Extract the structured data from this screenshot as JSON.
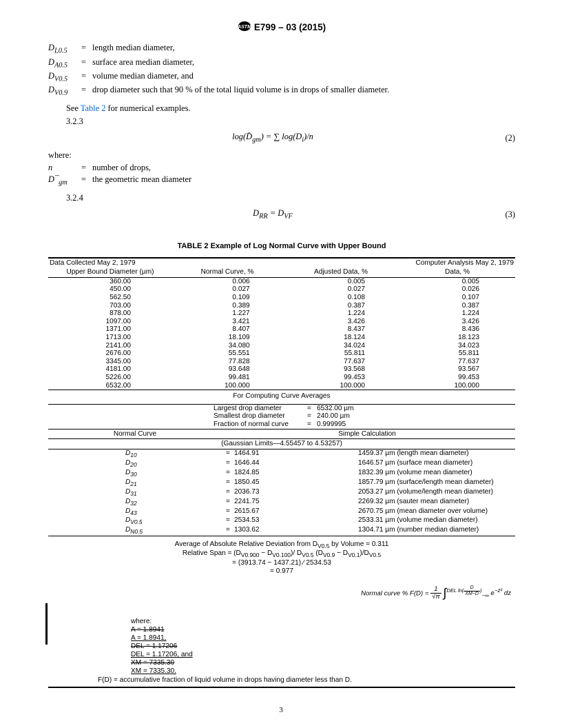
{
  "header": {
    "designation": "E799 – 03 (2015)"
  },
  "definitions": [
    {
      "sym": "D<sub>L0.5</sub>",
      "def": "length median diameter,"
    },
    {
      "sym": "D<sub>A0.5</sub>",
      "def": "surface area median diameter,"
    },
    {
      "sym": "D<sub>V0.5</sub>",
      "def": "volume median diameter, and"
    },
    {
      "sym": "D<sub>V0.9</sub>",
      "def": "drop diameter such that 90 % of the total liquid volume is in drops of smaller diameter."
    }
  ],
  "see_table": {
    "pre": "See ",
    "link": "Table 2",
    "post": " for numerical examples."
  },
  "sec_323": "3.2.3",
  "eq2": {
    "body": "log(D̄<sub>gm</sub>) = ∑ log(D<sub>i</sub>)/n",
    "num": "(2)"
  },
  "where_label": "where:",
  "where_rows": [
    {
      "sym": "n",
      "def": "number of drops,"
    },
    {
      "sym": "D¯<sub>gm</sub>",
      "def": "the geometric mean diameter"
    }
  ],
  "sec_324": "3.2.4",
  "eq3": {
    "body": "D<sub>RR</sub> = D<sub>VF</sub>",
    "num": "(3)"
  },
  "table": {
    "title": "TABLE 2 Example of Log Normal Curve with Upper Bound",
    "top_left": "Data Collected May 2, 1979",
    "top_right": "Computer Analysis May 2, 1979",
    "head": [
      "Upper Bound Diameter (µm)",
      "Normal Curve, %",
      "Adjusted Data, %",
      "Data, %"
    ],
    "rows": [
      [
        "360.00",
        "0.006",
        "0.005",
        "0.005"
      ],
      [
        "450.00",
        "0.027",
        "0.027",
        "0.026"
      ],
      [
        "562.50",
        "0.109",
        "0.108",
        "0.107"
      ],
      [
        "703.00",
        "0.389",
        "0.387",
        "0.387"
      ],
      [
        "878.00",
        "1.227",
        "1.224",
        "1.224"
      ],
      [
        "1097.00",
        "3.421",
        "3.426",
        "3.426"
      ],
      [
        "1371.00",
        "8.407",
        "8.437",
        "8.436"
      ],
      [
        "1713.00",
        "18.109",
        "18.124",
        "18.123"
      ],
      [
        "2141.00",
        "34.080",
        "34.024",
        "34.023"
      ],
      [
        "2676.00",
        "55.551",
        "55.811",
        "55.811"
      ],
      [
        "3345.00",
        "77.828",
        "77.637",
        "77.637"
      ],
      [
        "4181.00",
        "93.648",
        "93.568",
        "93.567"
      ],
      [
        "5226.00",
        "99.481",
        "99.453",
        "99.453"
      ],
      [
        "6532.00",
        "100.000",
        "100.000",
        "100.000"
      ]
    ],
    "curve_avg_title": "For Computing Curve Averages",
    "curve_avg": [
      [
        "Largest drop diameter",
        "=",
        "6532.00 µm"
      ],
      [
        "Smallest drop diameter",
        "=",
        "240.00 µm"
      ],
      [
        "Fraction of normal curve",
        "=",
        "0.999995"
      ]
    ],
    "nc_head": "Normal Curve",
    "sc_head": "Simple Calculation",
    "gauss": "(Gaussian Limits—4.55457 to 4.53257)",
    "dvals": [
      [
        "D<sub>10</sub>",
        "=",
        "1464.91",
        "1459.37 µm (length mean diameter)"
      ],
      [
        "D<sub>20</sub>",
        "=",
        "1646.44",
        "1646.57 µm (surface mean diameter)"
      ],
      [
        "D<sub>30</sub>",
        "=",
        "1824.85",
        "1832.39 µm (volume mean diameter)"
      ],
      [
        "D<sub>21</sub>",
        "=",
        "1850.45",
        "1857.79 µm (surface/length mean diameter)"
      ],
      [
        "D<sub>31</sub>",
        "=",
        "2036.73",
        "2053.27 µm (volume/length mean diameter)"
      ],
      [
        "D<sub>32</sub>",
        "=",
        "2241.75",
        "2269.32 µm (sauter mean diameter)"
      ],
      [
        "D<sub>43</sub>",
        "=",
        "2615.67",
        "2670.75 µm (mean diameter over volume)"
      ],
      [
        "D<sub>V0.5</sub>",
        "=",
        "2534.53",
        "2533.31 µm (volume median diameter)"
      ],
      [
        "D<sub>N0.5</sub>",
        "=",
        "1303.62",
        "1304.71 µm (number median diameter)"
      ]
    ],
    "stats": [
      "Average of Absolute Relative Deviation from D<sub>V0.5</sub> by Volume = 0.311",
      "Relative Span = (D<sub>V0.900</sub> − D<sub>V0.100</sub>)/ D<sub>V0.5</sub> (D<sub>V0.9</sub> − D<sub>V0.1</sub>)/D<sub>V0.5</sub>",
      "= (3913.74 − 1437.21) ⁄ 2534.53",
      "= 0.977"
    ],
    "normal_formula": {
      "lead": "Normal curve % F(D) = ",
      "frac_top": "1",
      "frac_bot": "√π",
      "upper": "DEL ln(",
      "upper_frac_top": "D",
      "upper_frac_bot": "XM−D",
      "upper_close": ")",
      "tail": " e<sup>−z²</sup> dz"
    },
    "where": {
      "label": "where:",
      "lines": [
        {
          "text": "A = 1.8941",
          "strike": true
        },
        {
          "text": "A = 1.8941,",
          "underline": true
        },
        {
          "text": "DEL = 1.17206",
          "strike": true
        },
        {
          "text": "DEL = 1.17206, and",
          "underline": true
        },
        {
          "text": "XM = 7335.30",
          "strike": true
        },
        {
          "text": "XM = 7335.30.",
          "underline": true
        }
      ],
      "fd": "F(D) = accumulative fraction of liquid volume in drops having diameter less than D."
    }
  },
  "pagenum": "3"
}
